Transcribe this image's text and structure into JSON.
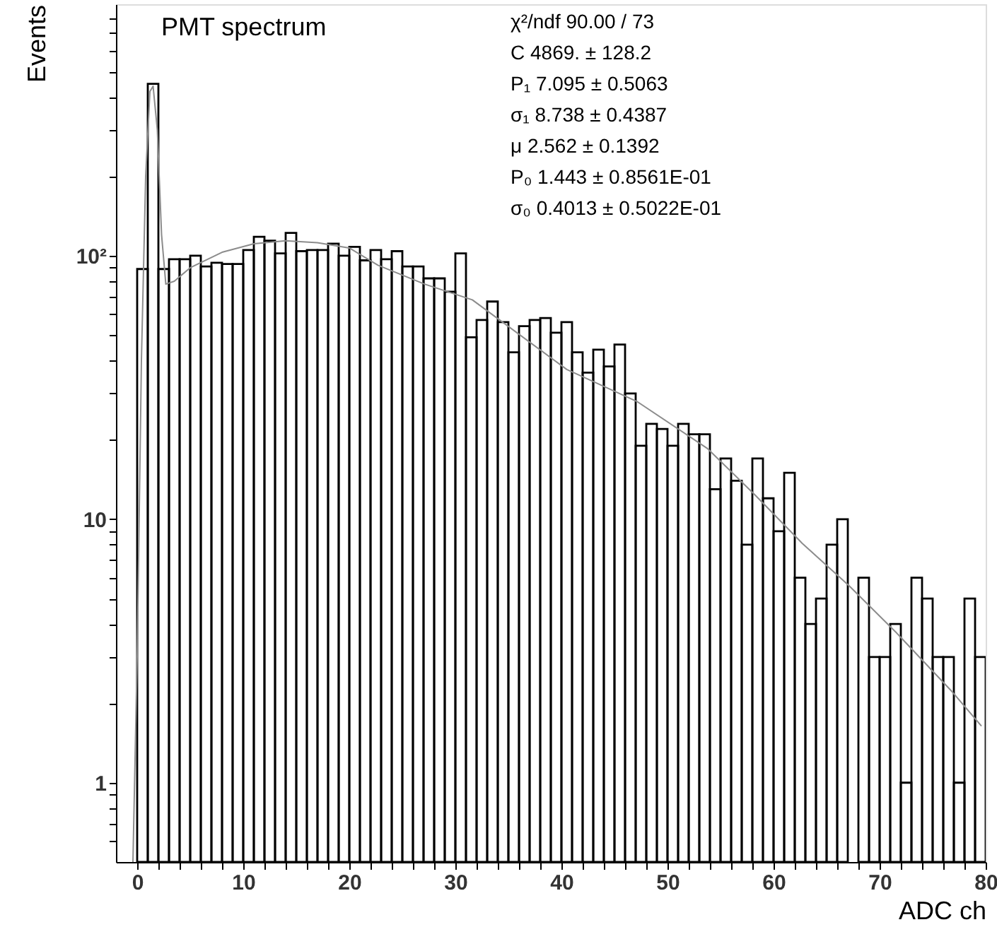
{
  "chart_data": {
    "type": "histogram",
    "title": "PMT spectrum",
    "xlabel": "ADC ch",
    "ylabel": "Events",
    "color": "#000000",
    "bins": [
      0,
      1,
      2,
      3,
      4,
      5,
      6,
      7,
      8,
      9,
      10,
      11,
      12,
      13,
      14,
      15,
      16,
      17,
      18,
      19,
      20,
      21,
      22,
      23,
      24,
      25,
      26,
      27,
      28,
      29,
      30,
      31,
      32,
      33,
      34,
      35,
      36,
      37,
      38,
      39,
      40,
      41,
      42,
      43,
      44,
      45,
      46,
      47,
      48,
      49,
      50,
      51,
      52,
      53,
      54,
      55,
      56,
      57,
      58,
      59,
      60,
      61,
      62,
      63,
      64,
      65,
      66,
      67,
      68,
      69,
      70,
      71,
      72,
      73,
      74,
      75,
      76,
      77,
      78,
      79,
      80
    ],
    "values": [
      89,
      449,
      89,
      97,
      97,
      100,
      91,
      94,
      93,
      93,
      105,
      118,
      114,
      102,
      122,
      104,
      105,
      105,
      111,
      100,
      108,
      96,
      105,
      97,
      104,
      91,
      91,
      82,
      82,
      73,
      102,
      49,
      57,
      67,
      56,
      43,
      54,
      57,
      58,
      51,
      56,
      43,
      36,
      44,
      38,
      46,
      30,
      19,
      23,
      22,
      19,
      23,
      21,
      21,
      13,
      17,
      14,
      8,
      17,
      12,
      9,
      15,
      6,
      4,
      5,
      8,
      10,
      null,
      6,
      3,
      3,
      4,
      1,
      6,
      5,
      3,
      3,
      1,
      5,
      3
    ],
    "series": [
      {
        "type": "line",
        "color": "#8c8c8c",
        "x": [
          -0.4,
          0,
          0.4,
          0.8,
          1.2,
          1.5,
          1.9,
          2.3,
          2.7,
          3.5,
          5,
          8,
          11,
          14,
          17,
          20,
          22.7,
          27.1,
          31.6,
          40.5,
          47.1,
          53.8,
          58.3,
          62.7,
          67.1,
          71.6,
          76.9,
          79.6
        ],
        "values": [
          0.5,
          3,
          40,
          200,
          420,
          440,
          300,
          120,
          78,
          80,
          90,
          103,
          111,
          114,
          112,
          107,
          92,
          78,
          68,
          37,
          28,
          18.5,
          12.3,
          8.1,
          5.6,
          3.7,
          2.2,
          1.64
        ]
      }
    ],
    "log": "y",
    "grid": false,
    "xlim": [
      -2,
      80
    ],
    "ylim": [
      0.5,
      900
    ],
    "xticks": [
      0,
      {
        "value": 2,
        "label": null
      },
      {
        "value": 4,
        "label": null
      },
      {
        "value": 6,
        "label": null
      },
      {
        "value": 8,
        "label": null
      },
      10,
      {
        "value": 12,
        "label": null
      },
      {
        "value": 14,
        "label": null
      },
      {
        "value": 16,
        "label": null
      },
      {
        "value": 18,
        "label": null
      },
      20,
      {
        "value": 22,
        "label": null
      },
      {
        "value": 24,
        "label": null
      },
      {
        "value": 26,
        "label": null
      },
      {
        "value": 28,
        "label": null
      },
      30,
      {
        "value": 32,
        "label": null
      },
      {
        "value": 34,
        "label": null
      },
      {
        "value": 36,
        "label": null
      },
      {
        "value": 38,
        "label": null
      },
      40,
      {
        "value": 42,
        "label": null
      },
      {
        "value": 44,
        "label": null
      },
      {
        "value": 46,
        "label": null
      },
      {
        "value": 48,
        "label": null
      },
      50,
      {
        "value": 52,
        "label": null
      },
      {
        "value": 54,
        "label": null
      },
      {
        "value": 56,
        "label": null
      },
      {
        "value": 58,
        "label": null
      },
      60,
      {
        "value": 62,
        "label": null
      },
      {
        "value": 64,
        "label": null
      },
      {
        "value": 66,
        "label": null
      },
      {
        "value": 68,
        "label": null
      },
      70,
      {
        "value": 72,
        "label": null
      },
      {
        "value": 74,
        "label": null
      },
      {
        "value": 76,
        "label": null
      },
      {
        "value": 78,
        "label": null
      },
      80
    ],
    "yticks": [
      {
        "value": 0.6,
        "label": null
      },
      {
        "value": 0.7,
        "label": null
      },
      {
        "value": 0.8,
        "label": null
      },
      {
        "value": 0.9,
        "label": null
      },
      1,
      {
        "value": 2,
        "label": null
      },
      {
        "value": 3,
        "label": null
      },
      {
        "value": 4,
        "label": null
      },
      {
        "value": 5,
        "label": null
      },
      {
        "value": 6,
        "label": null
      },
      {
        "value": 7,
        "label": null
      },
      {
        "value": 8,
        "label": null
      },
      {
        "value": 9,
        "label": null
      },
      10,
      {
        "value": 20,
        "label": null
      },
      {
        "value": 30,
        "label": null
      },
      {
        "value": 40,
        "label": null
      },
      {
        "value": 50,
        "label": null
      },
      {
        "value": 60,
        "label": null
      },
      {
        "value": 70,
        "label": null
      },
      {
        "value": 80,
        "label": null
      },
      {
        "value": 90,
        "label": null
      },
      {
        "value": 100,
        "label": "10²"
      },
      {
        "value": 200,
        "label": null
      },
      {
        "value": 300,
        "label": null
      },
      {
        "value": 400,
        "label": null
      },
      {
        "value": 500,
        "label": null
      },
      {
        "value": 600,
        "label": null
      },
      {
        "value": 700,
        "label": null
      },
      {
        "value": 800,
        "label": null
      }
    ],
    "annotations": [
      "χ²/ndf      90.00  /  73",
      "C                         4869. ±            128.2",
      "P₁                       7.095 ±           0.5063",
      "σ₁                       8.738 ±           0.4387",
      "μ                         2.562 ±           0.1392",
      "P₀                       1.443 ±     0.8561E-01",
      "σ₀                     0.4013 ±     0.5022E-01"
    ]
  }
}
